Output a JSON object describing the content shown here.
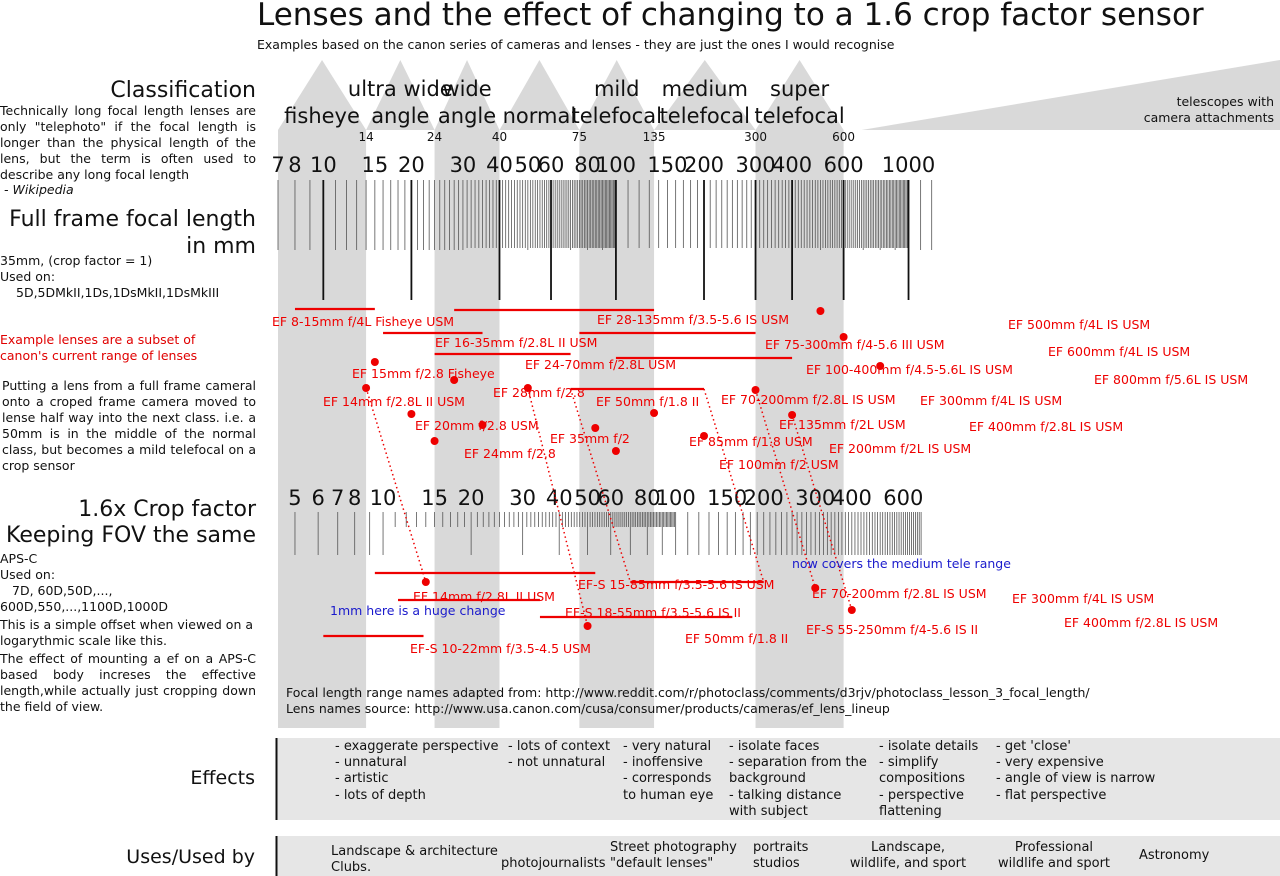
{
  "title": "Lenses and the effect of changing to a 1.6 crop factor sensor",
  "subtitle": "Examples based on the canon series of cameras and lenses - they are just the ones I would recognise",
  "left_panel": {
    "classification_heading": "Classification",
    "classification_text": "Technically long focal length lenses are only \"telephoto\" if the focal length is longer than the physical length of the lens, but the term is often used to describe any long focal length",
    "wikipedia": " - Wikipedia",
    "fullframe_heading_1": "Full frame focal length",
    "fullframe_heading_2": "in mm",
    "fullframe_text_1": "35mm, (crop factor = 1)",
    "fullframe_text_2": "Used on:",
    "fullframe_text_3": "5D,5DMkII,1Ds,1DsMkII,1DsMkIII",
    "example_lenses_note": "Example lenses are a subset of canon's current range of lenses",
    "putting_text": "Putting a lens from a full frame cameral onto a croped frame camera moved to lense half way into the next class. i.e. a 50mm is in the middle of the normal class, but becomes a mild telefocal on a crop sensor",
    "crop_heading_1": "1.6x Crop factor",
    "crop_heading_2": "Keeping FOV the same",
    "crop_text_1": "APS-C",
    "crop_text_2": "Used on:",
    "crop_text_3": "7D, 60D,50D,...,",
    "crop_text_4": "600D,550,...,1100D,1000D",
    "offset_text": "This is a simple offset when viewed on a logarythmic scale like this.",
    "effect_text": "The effect of mounting a ef on a APS-C based body increses the effective length,while actually just cropping down the field of view.",
    "effects_heading": "Effects",
    "uses_heading": "Uses/Used by"
  },
  "sources": {
    "line1": "Focal length range names adapted from: http://www.reddit.com/r/photoclass/comments/d3rjv/photoclass_lesson_3_focal_length/",
    "line2": "Lens names source: http://www.usa.canon.com/cusa/consumer/products/cameras/ef_lens_lineup"
  },
  "effects_columns": [
    "- exaggerate perspective\n- unnatural\n- artistic\n- lots of depth",
    "- lots of context\n- not unnatural",
    "- very natural\n- inoffensive\n- corresponds\nto human eye",
    "- isolate faces\n- separation from the\nbackground\n- talking distance\nwith subject",
    "- isolate details\n- simplify\ncompositions\n- perspective\nflattening",
    "- get 'close'\n- very expensive\n- angle of view is narrow\n- flat perspective"
  ],
  "uses_columns": [
    "Landscape & architecture\nClubs.",
    "photojournalists",
    "Street photography\n\"default lenses\"",
    "portraits\nstudios",
    "Landscape,\nwildlife, and sport",
    "Professional\nwildlife and sport",
    "Astronomy"
  ],
  "colors": {
    "band": "#d9d9d9",
    "lens": "#ee0000",
    "note_blue": "#1a1acc",
    "panel": "#e6e6e6"
  },
  "chart_data": {
    "type": "log-scale range chart",
    "classes": [
      {
        "name": "fisheye",
        "label": [
          "fisheye"
        ],
        "from": 7,
        "to": 14
      },
      {
        "name": "ultra wide angle",
        "label": [
          "ultra wide",
          "angle"
        ],
        "from": 14,
        "to": 24
      },
      {
        "name": "wide angle",
        "label": [
          "wide",
          "angle"
        ],
        "from": 24,
        "to": 40
      },
      {
        "name": "normal",
        "label": [
          "normal"
        ],
        "from": 40,
        "to": 75
      },
      {
        "name": "mild telefocal",
        "label": [
          "mild",
          "telefocal"
        ],
        "from": 75,
        "to": 135
      },
      {
        "name": "medium telefocal",
        "label": [
          "medium",
          "telefocal"
        ],
        "from": 135,
        "to": 300
      },
      {
        "name": "super telefocal",
        "label": [
          "super",
          "telefocal"
        ],
        "from": 300,
        "to": 600
      },
      {
        "name": "telescopes with camera attachments",
        "label": [
          "telescopes with",
          "camera attachments"
        ],
        "from": 600,
        "to": 2000
      }
    ],
    "boundary_labels": [
      14,
      24,
      40,
      75,
      135,
      300,
      600
    ],
    "shaded_classes": [
      "fisheye",
      "wide angle",
      "mild telefocal",
      "super telefocal"
    ],
    "full_frame_axis": {
      "range": [
        7,
        1200
      ],
      "tick_labels": [
        7,
        8,
        10,
        15,
        20,
        30,
        40,
        50,
        60,
        80,
        100,
        150,
        200,
        300,
        400,
        600,
        1000
      ]
    },
    "crop_axis": {
      "crop_factor": 1.6,
      "tick_labels": [
        5,
        6,
        7,
        8,
        10,
        15,
        20,
        30,
        40,
        50,
        60,
        80,
        100,
        150,
        200,
        300,
        400,
        600
      ]
    },
    "full_frame_zooms": [
      {
        "name": "EF 8-15mm f/4L Fisheye USM",
        "from": 8,
        "to": 15
      },
      {
        "name": "EF 28-135mm f/3.5-5.6 IS USM",
        "from": 28,
        "to": 135
      },
      {
        "name": "EF 16-35mm f/2.8L II USM",
        "from": 16,
        "to": 35
      },
      {
        "name": "EF 75-300mm f/4-5.6 III USM",
        "from": 75,
        "to": 300
      },
      {
        "name": "EF 24-70mm f/2.8L USM",
        "from": 24,
        "to": 70
      },
      {
        "name": "EF 100-400mm f/4.5-5.6L IS USM",
        "from": 100,
        "to": 400
      },
      {
        "name": "EF 70-200mm f/2.8L IS USM",
        "from": 70,
        "to": 200
      }
    ],
    "full_frame_primes": [
      {
        "name": "EF 500mm f/4L IS USM",
        "focal": 500
      },
      {
        "name": "EF 600mm f/4L IS USM",
        "focal": 600
      },
      {
        "name": "EF 800mm f/5.6L IS USM",
        "focal": 800
      },
      {
        "name": "EF 15mm f/2.8 Fisheye",
        "focal": 15
      },
      {
        "name": "EF 14mm f/2.8L II USM",
        "focal": 14
      },
      {
        "name": "EF 28mm f/2.8",
        "focal": 28
      },
      {
        "name": "EF 50mm f/1.8 II",
        "focal": 50
      },
      {
        "name": "EF 20mm f/2.8 USM",
        "focal": 20
      },
      {
        "name": "EF 35mm f/2",
        "focal": 35
      },
      {
        "name": "EF 24mm f/2.8",
        "focal": 24
      },
      {
        "name": "EF 300mm f/4L IS USM",
        "focal": 300
      },
      {
        "name": "EF 400mm f/2.8L IS USM",
        "focal": 400
      },
      {
        "name": "EF 135mm f/2L USM",
        "focal": 135
      },
      {
        "name": "EF 85mm f/1.8 USM",
        "focal": 85
      },
      {
        "name": "EF 200mm f/2L IS USM",
        "focal": 200
      },
      {
        "name": "EF 100mm f/2 USM",
        "focal": 100
      }
    ],
    "crop_zooms": [
      {
        "name": "EF-S 15-85mm f/3.5-5.6 IS USM",
        "from": 15,
        "to": 85
      },
      {
        "name": "EF 70-200mm f/2.8L IS USM",
        "from": 70,
        "to": 200
      },
      {
        "name": "EF-S 18-55mm f/3.5-5.6 IS II",
        "from": 18,
        "to": 55
      },
      {
        "name": "EF-S 55-250mm f/4-5.6 IS II",
        "from": 55,
        "to": 250
      },
      {
        "name": "EF-S 10-22mm f/3.5-4.5 USM",
        "from": 10,
        "to": 22
      }
    ],
    "crop_primes": [
      {
        "name": "EF 14mm f/2.8L II USM",
        "focal": 14
      },
      {
        "name": "EF 50mm f/1.8 II",
        "focal": 50
      },
      {
        "name": "EF 300mm f/4L IS USM",
        "focal": 300
      },
      {
        "name": "EF 400mm f/2.8L IS USM",
        "focal": 400
      }
    ],
    "annotations": [
      "now covers the medium tele range",
      "1mm here is a huge change"
    ]
  }
}
